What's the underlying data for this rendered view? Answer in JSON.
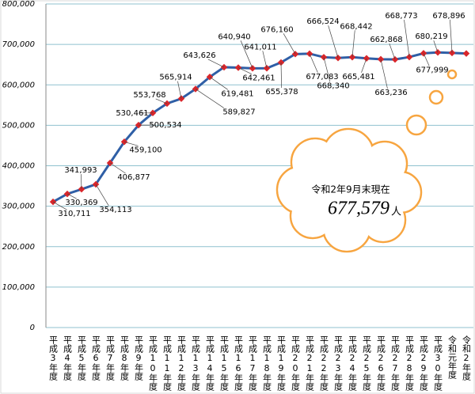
{
  "chart_data": {
    "type": "line",
    "categories": [
      "平成3年度",
      "平成4年度",
      "平成5年度",
      "平成6年度",
      "平成7年度",
      "平成8年度",
      "平成9年度",
      "平成10年度",
      "平成11年度",
      "平成12年度",
      "平成13年度",
      "平成14年度",
      "平成15年度",
      "平成16年度",
      "平成17年度",
      "平成18年度",
      "平成19年度",
      "平成20年度",
      "平成21年度",
      "平成22年度",
      "平成23年度",
      "平成24年度",
      "平成25年度",
      "平成26年度",
      "平成27年度",
      "平成28年度",
      "平成29年度",
      "平成30年度",
      "令和元年度",
      "令和2年度"
    ],
    "values": [
      310711,
      330369,
      341993,
      354113,
      406877,
      459100,
      500534,
      530461,
      553768,
      565914,
      589827,
      619481,
      643626,
      642461,
      640940,
      641011,
      655378,
      676160,
      677083,
      668340,
      666524,
      668442,
      665481,
      663236,
      662868,
      668773,
      677999,
      680219,
      678896,
      677579
    ],
    "value_labels": [
      "310,711",
      "330,369",
      "341,993",
      "354,113",
      "406,877",
      "459,100",
      "500,534",
      "530,461",
      "553,768",
      "565,914",
      "589,827",
      "619,481",
      "643,626",
      "642,461",
      "640,940",
      "641,011",
      "655,378",
      "676,160",
      "677,083",
      "668,340",
      "666,524",
      "668,442",
      "665,481",
      "663,236",
      "662,868",
      "668,773",
      "677,999",
      "680,219",
      "678,896",
      "677,579"
    ],
    "line_color": "#2f5fa6",
    "marker_color": "#d9262b",
    "ylim": [
      0,
      800000
    ],
    "yticks": [
      0,
      {
        "value": 100000,
        "label": "100,000"
      },
      {
        "value": 200000,
        "label": "200,000"
      },
      {
        "value": 300000,
        "label": "300,000"
      },
      {
        "value": 400000,
        "label": "400,000"
      },
      {
        "value": 500000,
        "label": "500,000"
      },
      {
        "value": 600000,
        "label": "600,000"
      },
      {
        "value": 700000,
        "label": "700,000"
      },
      {
        "value": 800000,
        "label": "800,000"
      }
    ],
    "grid": true,
    "annotation": {
      "date": "令和2年9月末現在",
      "unit": "人"
    }
  }
}
